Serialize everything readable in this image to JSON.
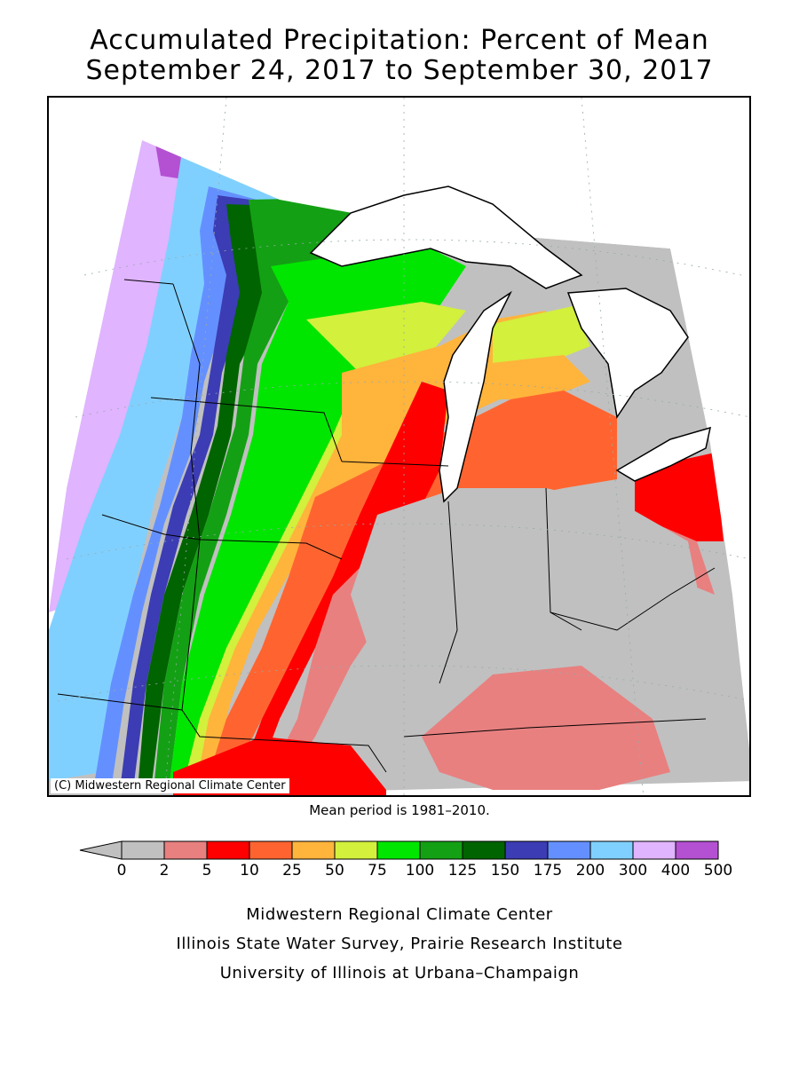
{
  "title_line1": "Accumulated Precipitation: Percent of Mean",
  "title_line2": "September 24, 2017 to September 30, 2017",
  "copyright": "(C) Midwestern Regional Climate Center",
  "mean_note": "Mean period is 1981–2010.",
  "credits": [
    "Midwestern Regional Climate Center",
    "Illinois State Water Survey, Prairie Research Institute",
    "University of Illinois at Urbana–Champaign"
  ],
  "legend": {
    "ticks": [
      "0",
      "2",
      "5",
      "10",
      "25",
      "50",
      "75",
      "100",
      "125",
      "150",
      "175",
      "200",
      "300",
      "400",
      "500"
    ],
    "colors": [
      "#c0c0c0",
      "#e88080",
      "#ff0000",
      "#ff6430",
      "#ffb43c",
      "#d2f03c",
      "#00e600",
      "#14a014",
      "#006400",
      "#3c3cb4",
      "#6490ff",
      "#80d0ff",
      "#e0b4ff",
      "#b450d2"
    ],
    "below_color": "#c0c0c0"
  }
}
